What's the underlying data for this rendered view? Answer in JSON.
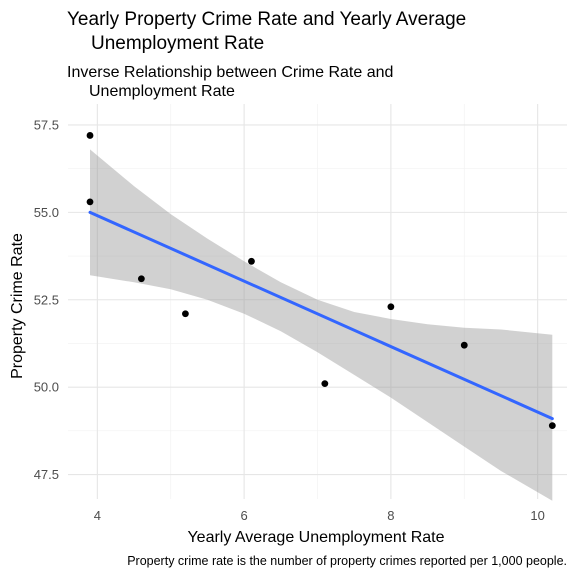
{
  "chart_data": {
    "type": "scatter",
    "title_lines": [
      "Yearly Property Crime Rate and Yearly Average",
      "Unemployment Rate"
    ],
    "subtitle_lines": [
      "Inverse Relationship between Crime Rate and",
      "Unemployment Rate"
    ],
    "xlabel": "Yearly Average Unemployment Rate",
    "ylabel": "Property Crime Rate",
    "caption": "Property crime rate is the number of property crimes reported per 1,000 people.",
    "xlim": [
      3.6,
      10.4
    ],
    "ylim": [
      46.8,
      58.1
    ],
    "x_ticks": [
      4,
      6,
      8,
      10
    ],
    "x_tick_labels": [
      "4",
      "6",
      "8",
      "10"
    ],
    "y_ticks": [
      47.5,
      50.0,
      52.5,
      55.0,
      57.5
    ],
    "y_tick_labels": [
      "47.5",
      "50.0",
      "52.5",
      "55.0",
      "57.5"
    ],
    "grid": true,
    "points": [
      {
        "x": 3.9,
        "y": 57.2
      },
      {
        "x": 3.9,
        "y": 55.3
      },
      {
        "x": 4.6,
        "y": 53.1
      },
      {
        "x": 5.2,
        "y": 52.1
      },
      {
        "x": 6.1,
        "y": 53.6
      },
      {
        "x": 7.1,
        "y": 50.1
      },
      {
        "x": 8.0,
        "y": 52.3
      },
      {
        "x": 9.0,
        "y": 51.2
      },
      {
        "x": 10.2,
        "y": 48.9
      }
    ],
    "trend_line": {
      "x": [
        3.9,
        10.2
      ],
      "y": [
        55.0,
        49.1
      ]
    },
    "confidence_band": {
      "x": [
        3.9,
        4.5,
        5.0,
        5.5,
        6.0,
        6.5,
        7.0,
        7.5,
        8.0,
        8.5,
        9.0,
        9.5,
        10.2
      ],
      "upper": [
        56.8,
        55.75,
        54.95,
        54.25,
        53.6,
        53.0,
        52.5,
        52.15,
        51.95,
        51.8,
        51.7,
        51.65,
        51.5
      ],
      "lower": [
        53.2,
        53.0,
        52.8,
        52.5,
        52.1,
        51.6,
        51.0,
        50.35,
        49.7,
        49.0,
        48.3,
        47.6,
        46.75
      ]
    },
    "colors": {
      "points": "#000000",
      "trend_line": "#3366ff",
      "band": "#999999"
    }
  }
}
